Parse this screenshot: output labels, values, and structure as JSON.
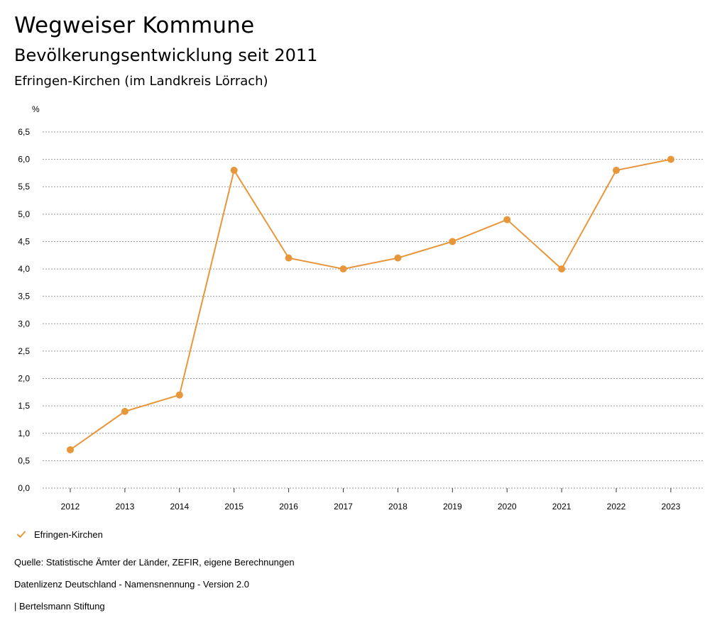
{
  "header": {
    "title": "Wegweiser Kommune",
    "subtitle": "Bevölkerungsentwicklung seit 2011",
    "region": "Efringen-Kirchen (im Landkreis Lörrach)"
  },
  "colors": {
    "series": "#e8963a",
    "grid": "#999999"
  },
  "chart_data": {
    "type": "line",
    "title": "Bevölkerungsentwicklung seit 2011",
    "ylabel": "%",
    "xlabel": "",
    "ylim": [
      0,
      6.5
    ],
    "yticks": [
      0,
      0.5,
      1,
      1.5,
      2,
      2.5,
      3,
      3.5,
      4,
      4.5,
      5,
      5.5,
      6,
      6.5
    ],
    "ytick_labels": [
      "0,0",
      "0,5",
      "1,0",
      "1,5",
      "2,0",
      "2,5",
      "3,0",
      "3,5",
      "4,0",
      "4,5",
      "5,0",
      "5,5",
      "6,0",
      "6,5"
    ],
    "categories": [
      "2012",
      "2013",
      "2014",
      "2015",
      "2016",
      "2017",
      "2018",
      "2019",
      "2020",
      "2021",
      "2022",
      "2023"
    ],
    "series": [
      {
        "name": "Efringen-Kirchen",
        "values": [
          0.7,
          1.4,
          1.7,
          5.8,
          4.2,
          4.0,
          4.2,
          4.5,
          4.9,
          4.0,
          5.8,
          6.0
        ]
      }
    ],
    "grid": true,
    "legend": "bottom-left"
  },
  "legend": {
    "label": "Efringen-Kirchen"
  },
  "footer": {
    "source": "Quelle: Statistische Ämter der Länder, ZEFIR, eigene Berechnungen",
    "license": "Datenlizenz Deutschland - Namensnennung - Version 2.0",
    "org": "| Bertelsmann Stiftung"
  }
}
